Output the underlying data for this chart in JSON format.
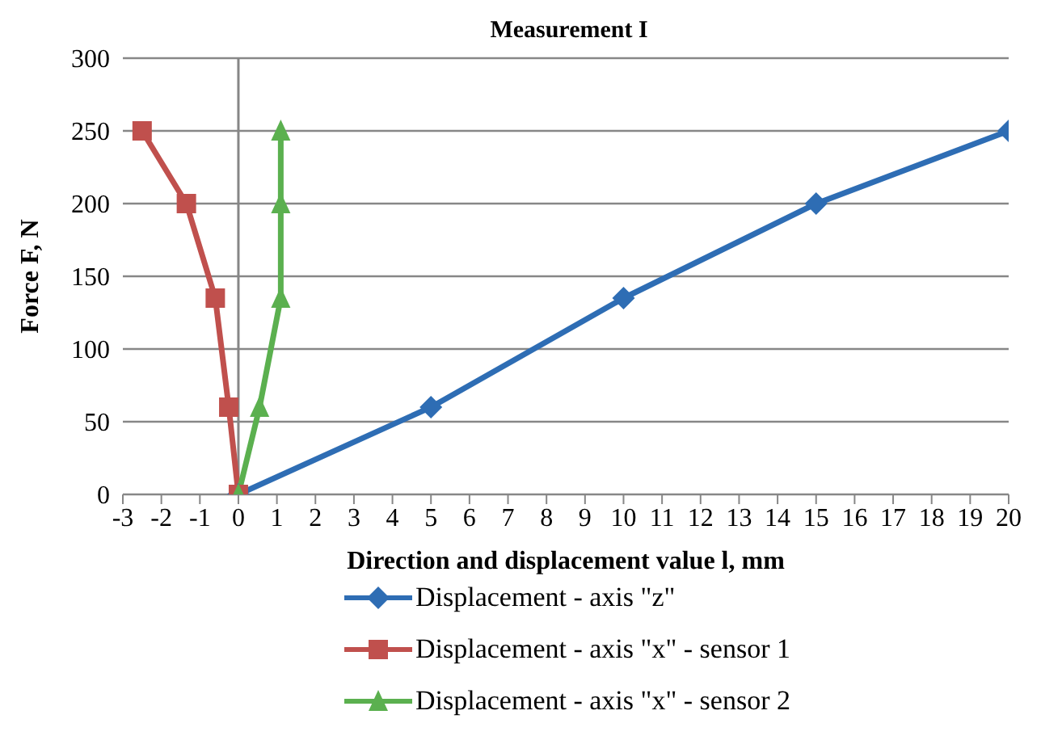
{
  "chart_data": {
    "type": "line",
    "title": "Measurement I",
    "xlabel": "Direction and displacement value l, mm",
    "ylabel": "Force F, N",
    "xlim": [
      -3,
      20
    ],
    "xticks": [
      -3,
      -2,
      -1,
      0,
      1,
      2,
      3,
      4,
      5,
      6,
      7,
      8,
      9,
      10,
      11,
      12,
      13,
      14,
      15,
      16,
      17,
      18,
      19,
      20
    ],
    "ylim": [
      0,
      300
    ],
    "yticks": [
      0,
      50,
      100,
      150,
      200,
      250,
      300
    ],
    "grid": "y",
    "legend": "bottom",
    "ref_lines": [
      {
        "axis": "x",
        "value": 0,
        "color": "#868686"
      }
    ],
    "series": [
      {
        "name": "Displacement - axis \"z\"",
        "color": "#2e6db4",
        "marker": "diamond",
        "x": [
          0,
          5,
          10,
          15,
          20
        ],
        "values": [
          0,
          60,
          135,
          200,
          250
        ]
      },
      {
        "name": "Displacement - axis \"x\" - sensor 1",
        "color": "#c0504d",
        "marker": "square",
        "x": [
          0,
          -0.25,
          -0.6,
          -1.35,
          -2.5
        ],
        "values": [
          0,
          60,
          135,
          200,
          250
        ]
      },
      {
        "name": "Displacement - axis \"x\" - sensor 2",
        "color": "#5bb04f",
        "marker": "triangle",
        "x": [
          0,
          0.55,
          1.1,
          1.1,
          1.1
        ],
        "values": [
          0,
          60,
          135,
          200,
          250
        ]
      }
    ]
  }
}
